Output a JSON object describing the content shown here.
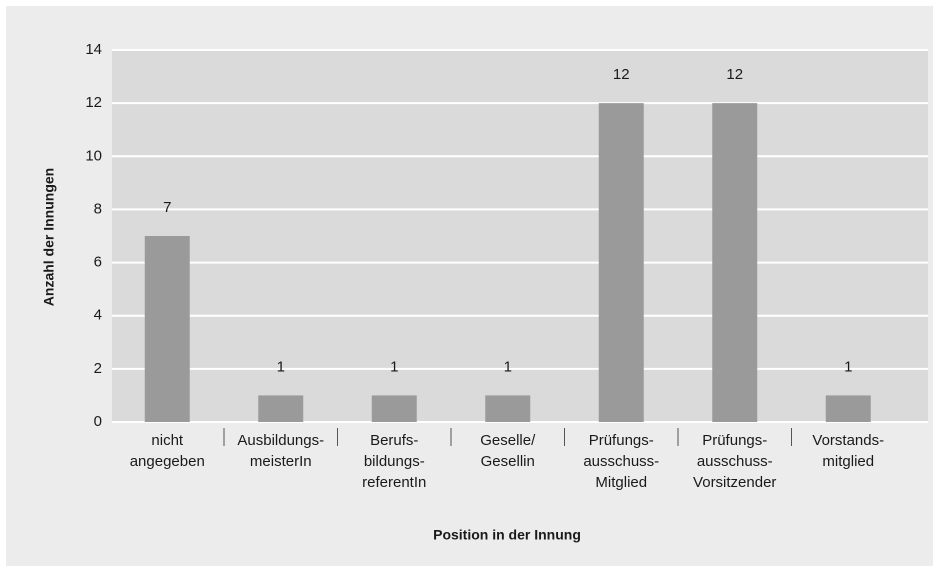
{
  "chart_data": {
    "type": "bar",
    "x_label": "Position in der Innung",
    "y_label": "Anzahl der Innungen",
    "categories": [
      [
        "nicht",
        "angegeben"
      ],
      [
        "Ausbildungs-",
        "meisterIn"
      ],
      [
        "Berufs-",
        "bildungs-",
        "referentIn"
      ],
      [
        "Geselle/",
        "Gesellin"
      ],
      [
        "Prüfungs-",
        "ausschuss-",
        "Mitglied"
      ],
      [
        "Prüfungs-",
        "ausschuss-",
        "Vorsitzender"
      ],
      [
        "Vorstands-",
        "mitglied"
      ]
    ],
    "values": [
      7,
      1,
      1,
      1,
      12,
      12,
      1
    ],
    "color": "#9a9a9a",
    "ylim": [
      0,
      14
    ],
    "yticks": [
      0,
      2,
      4,
      6,
      8,
      10,
      12,
      14
    ],
    "grid": true
  }
}
